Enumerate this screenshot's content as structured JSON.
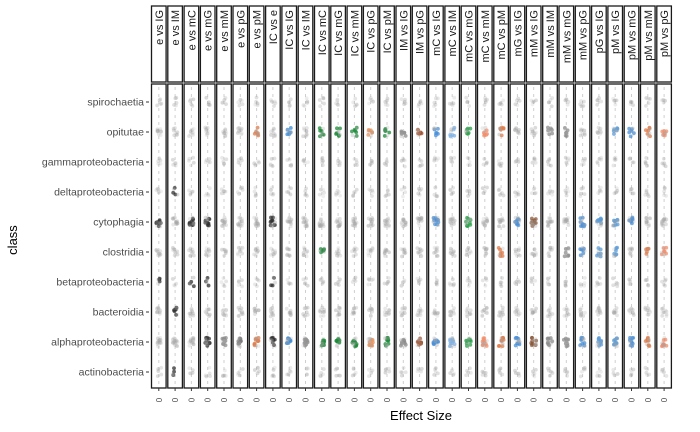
{
  "chart_data": {
    "type": "scatter",
    "xlabel": "Effect Size",
    "ylabel": "class",
    "x_tick_label": "0",
    "panels": [
      "e_vs_IG",
      "e_vs_IM",
      "e_vs_mC",
      "e_vs_mG",
      "e_vs_mM",
      "e_vs_pG",
      "e_vs_pM",
      "IC_vs_e",
      "IC_vs_IG",
      "IC_vs_IM",
      "IC_vs_mC",
      "IC_vs_mG",
      "IC_vs_mM",
      "IC_vs_pG",
      "IC_vs_pM",
      "IM_vs_IG",
      "IM_vs_pG",
      "mC_vs_IG",
      "mC_vs_IM",
      "mC_vs_mG",
      "mC_vs_mM",
      "mC_vs_pM",
      "mG_vs_IG",
      "mM_vs_IG",
      "mM_vs_IM",
      "mM_vs_mG",
      "mM_vs_pG",
      "pG_vs_IG",
      "pM_vs_IG",
      "pM_vs_mG",
      "pM_vs_mM",
      "pM_vs_pG"
    ],
    "categories": [
      "spirochaetia",
      "opitutae",
      "gammaproteobacteria",
      "deltaproteobacteria",
      "cytophagia",
      "clostridia",
      "betaproteobacteria",
      "bacteroidia",
      "alphaproteobacteria",
      "actinobacteria"
    ],
    "panel_colors": [
      "#333333",
      "#333333",
      "#333333",
      "#333333",
      "#8c8c8c",
      "#7a7a7a",
      "#e07b48",
      "#333333",
      "#3a8ad6",
      "#8c8c8c",
      "#1e8a3a",
      "#1e8a3a",
      "#1e8a3a",
      "#e8935e",
      "#1e8a3a",
      "#8c8c8c",
      "#a0522d",
      "#4a90d9",
      "#7fb2e5",
      "#2aa04a",
      "#f28e6b",
      "#e07b48",
      "#4a90d9",
      "#8b5a3c",
      "#8c8c8c",
      "#8c8c8c",
      "#4a90d9",
      "#5b9bd5",
      "#5b9bd5",
      "#4a90d9",
      "#e07b48",
      "#f28e6b"
    ],
    "gray_color": "#a6a6a6",
    "highlights": [
      [
        4,
        6
      ],
      [
        3,
        7,
        9
      ],
      [
        4,
        6
      ],
      [
        4,
        6,
        8
      ],
      [
        8
      ],
      [
        8
      ],
      [
        1,
        8
      ],
      [
        4,
        6,
        8
      ],
      [
        1,
        8
      ],
      [
        8
      ],
      [
        1,
        5,
        8
      ],
      [
        1,
        8
      ],
      [
        1,
        8
      ],
      [
        1,
        8
      ],
      [
        1,
        8
      ],
      [
        1,
        8
      ],
      [
        1,
        8
      ],
      [
        1,
        4,
        8
      ],
      [
        1,
        8
      ],
      [
        1,
        4,
        8
      ],
      [
        1,
        8
      ],
      [
        1,
        5,
        8
      ],
      [
        4,
        8
      ],
      [
        4,
        8
      ],
      [
        1,
        8
      ],
      [
        1,
        5,
        8
      ],
      [
        4,
        5,
        8
      ],
      [
        4,
        5,
        8
      ],
      [
        1,
        4,
        5,
        8
      ],
      [
        1,
        4,
        8
      ],
      [
        1,
        5,
        8
      ],
      [
        1,
        5,
        8
      ]
    ]
  }
}
